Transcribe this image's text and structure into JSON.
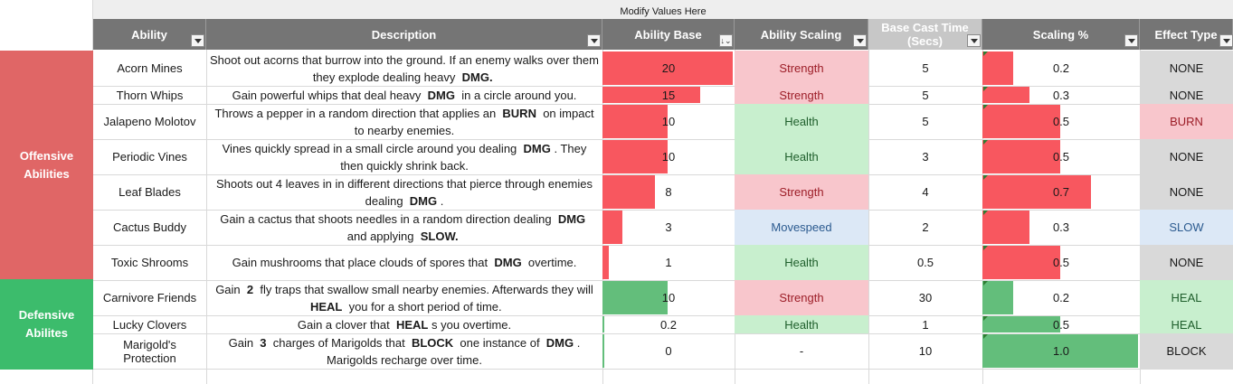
{
  "banner": "Modify Values Here",
  "headers": {
    "ability": "Ability",
    "description": "Description",
    "base": "Ability Base",
    "scaling": "Ability Scaling",
    "cast": "Base Cast Time (Secs)",
    "pct": "Scaling %",
    "effect": "Effect Type"
  },
  "groups": {
    "offensive": "Offensive Abilities",
    "defensive": "Defensive Abilites"
  },
  "colors": {
    "offensive": "#e06666",
    "defensive": "#3cbc6c",
    "bar_red": "#f8575f",
    "bar_green": "#63be7b"
  },
  "rows": [
    {
      "name": "Acorn Mines",
      "desc": "Shoot out acorns that burrow into the ground. If an enemy walks over them they explode dealing heavy <b>DMG.</b>",
      "base": "20",
      "base_value": 20,
      "scaling": "Strength",
      "cast": "5",
      "pct": "0.2",
      "pct_value": 0.2,
      "effect": "NONE"
    },
    {
      "name": "Thorn Whips",
      "desc": "Gain powerful whips that deal heavy <b>DMG</b> in a circle around you.",
      "base": "15",
      "base_value": 15,
      "scaling": "Strength",
      "cast": "5",
      "pct": "0.3",
      "pct_value": 0.3,
      "effect": "NONE"
    },
    {
      "name": "Jalapeno Molotov",
      "desc": "Throws a pepper in a random direction that applies an <b>BURN</b> on impact to nearby enemies.",
      "base": "10",
      "base_value": 10,
      "scaling": "Health",
      "cast": "5",
      "pct": "0.5",
      "pct_value": 0.5,
      "effect": "BURN"
    },
    {
      "name": "Periodic Vines",
      "desc": "Vines quickly spread in a small circle around you dealing <b>DMG</b>. They then quickly shrink back.",
      "base": "10",
      "base_value": 10,
      "scaling": "Health",
      "cast": "3",
      "pct": "0.5",
      "pct_value": 0.5,
      "effect": "NONE"
    },
    {
      "name": "Leaf Blades",
      "desc": "Shoots out 4 leaves in in different directions that pierce through enemies dealing <b>DMG</b>.",
      "base": "8",
      "base_value": 8,
      "scaling": "Strength",
      "cast": "4",
      "pct": "0.7",
      "pct_value": 0.7,
      "effect": "NONE"
    },
    {
      "name": "Cactus Buddy",
      "desc": "Gain a cactus that shoots needles in a random direction dealing <b>DMG</b> and applying <b>SLOW.</b>",
      "base": "3",
      "base_value": 3,
      "scaling": "Movespeed",
      "cast": "2",
      "pct": "0.3",
      "pct_value": 0.3,
      "effect": "SLOW"
    },
    {
      "name": "Toxic Shrooms",
      "desc": "Gain mushrooms that place clouds of spores that <b>DMG</b> overtime.",
      "base": "1",
      "base_value": 1,
      "scaling": "Health",
      "cast": "0.5",
      "pct": "0.5",
      "pct_value": 0.5,
      "effect": "NONE"
    },
    {
      "name": "Carnivore Friends",
      "desc": "Gain <b>2</b> fly traps that swallow small nearby enemies. Afterwards they will <b>HEAL</b> you for a short period of time.",
      "base": "10",
      "base_value": 10,
      "scaling": "Strength",
      "cast": "30",
      "pct": "0.2",
      "pct_value": 0.2,
      "effect": "HEAL"
    },
    {
      "name": "Lucky Clovers",
      "desc": "Gain a clover that <b>HEAL</b>s you overtime.",
      "base": "0.2",
      "base_value": 0.2,
      "scaling": "Health",
      "cast": "1",
      "pct": "0.5",
      "pct_value": 0.5,
      "effect": "HEAL"
    },
    {
      "name": "Marigold's Protection",
      "desc": "Gain <b>3</b> charges of Marigolds that <b>BLOCK</b> one instance of <b>DMG</b>. Marigolds recharge over time.",
      "base": "0",
      "base_value": 0,
      "scaling": "-",
      "cast": "10",
      "pct": "1.0",
      "pct_value": 1.0,
      "effect": "BLOCK"
    }
  ]
}
